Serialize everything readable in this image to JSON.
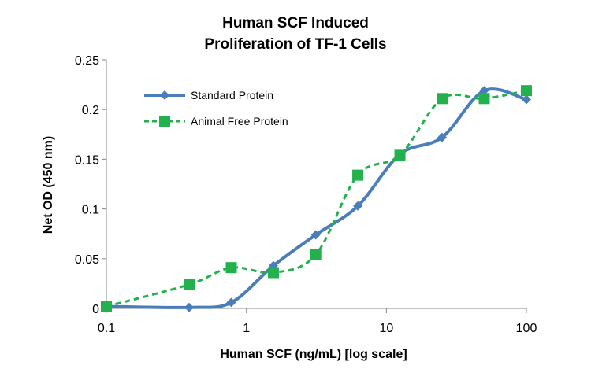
{
  "chart_data": {
    "type": "line",
    "title_lines": [
      "Human SCF Induced",
      "Proliferation of TF-1 Cells"
    ],
    "xlabel": "Human SCF (ng/mL) [log scale]",
    "ylabel": "Net OD (450 nm)",
    "x_scale": "log",
    "xlim": [
      0.1,
      100
    ],
    "ylim": [
      0,
      0.25
    ],
    "x_ticks": [
      0.1,
      1,
      10,
      100
    ],
    "x_tick_labels": [
      "0.1",
      "1",
      "10",
      "100"
    ],
    "y_ticks": [
      0,
      0.05,
      0.1,
      0.15,
      0.2,
      0.25
    ],
    "y_tick_labels": [
      "0",
      "0.05",
      "0.1",
      "0.15",
      "0.2",
      "0.25"
    ],
    "grid": false,
    "legend_position": "top-left",
    "series": [
      {
        "name": "Standard Protein",
        "color": "#4a7ebb",
        "marker": "diamond",
        "line_style": "solid",
        "x": [
          0.1,
          0.39,
          0.78,
          1.56,
          3.13,
          6.25,
          12.5,
          25,
          50,
          100
        ],
        "y": [
          0.002,
          0.001,
          0.006,
          0.043,
          0.074,
          0.103,
          0.155,
          0.172,
          0.219,
          0.21
        ]
      },
      {
        "name": "Animal Free Protein",
        "color": "#22b14c",
        "marker": "square",
        "line_style": "dashed",
        "x": [
          0.1,
          0.39,
          0.78,
          1.56,
          3.13,
          6.25,
          12.5,
          25,
          50,
          100
        ],
        "y": [
          0.002,
          0.024,
          0.041,
          0.036,
          0.054,
          0.134,
          0.154,
          0.211,
          0.211,
          0.219
        ]
      }
    ]
  }
}
